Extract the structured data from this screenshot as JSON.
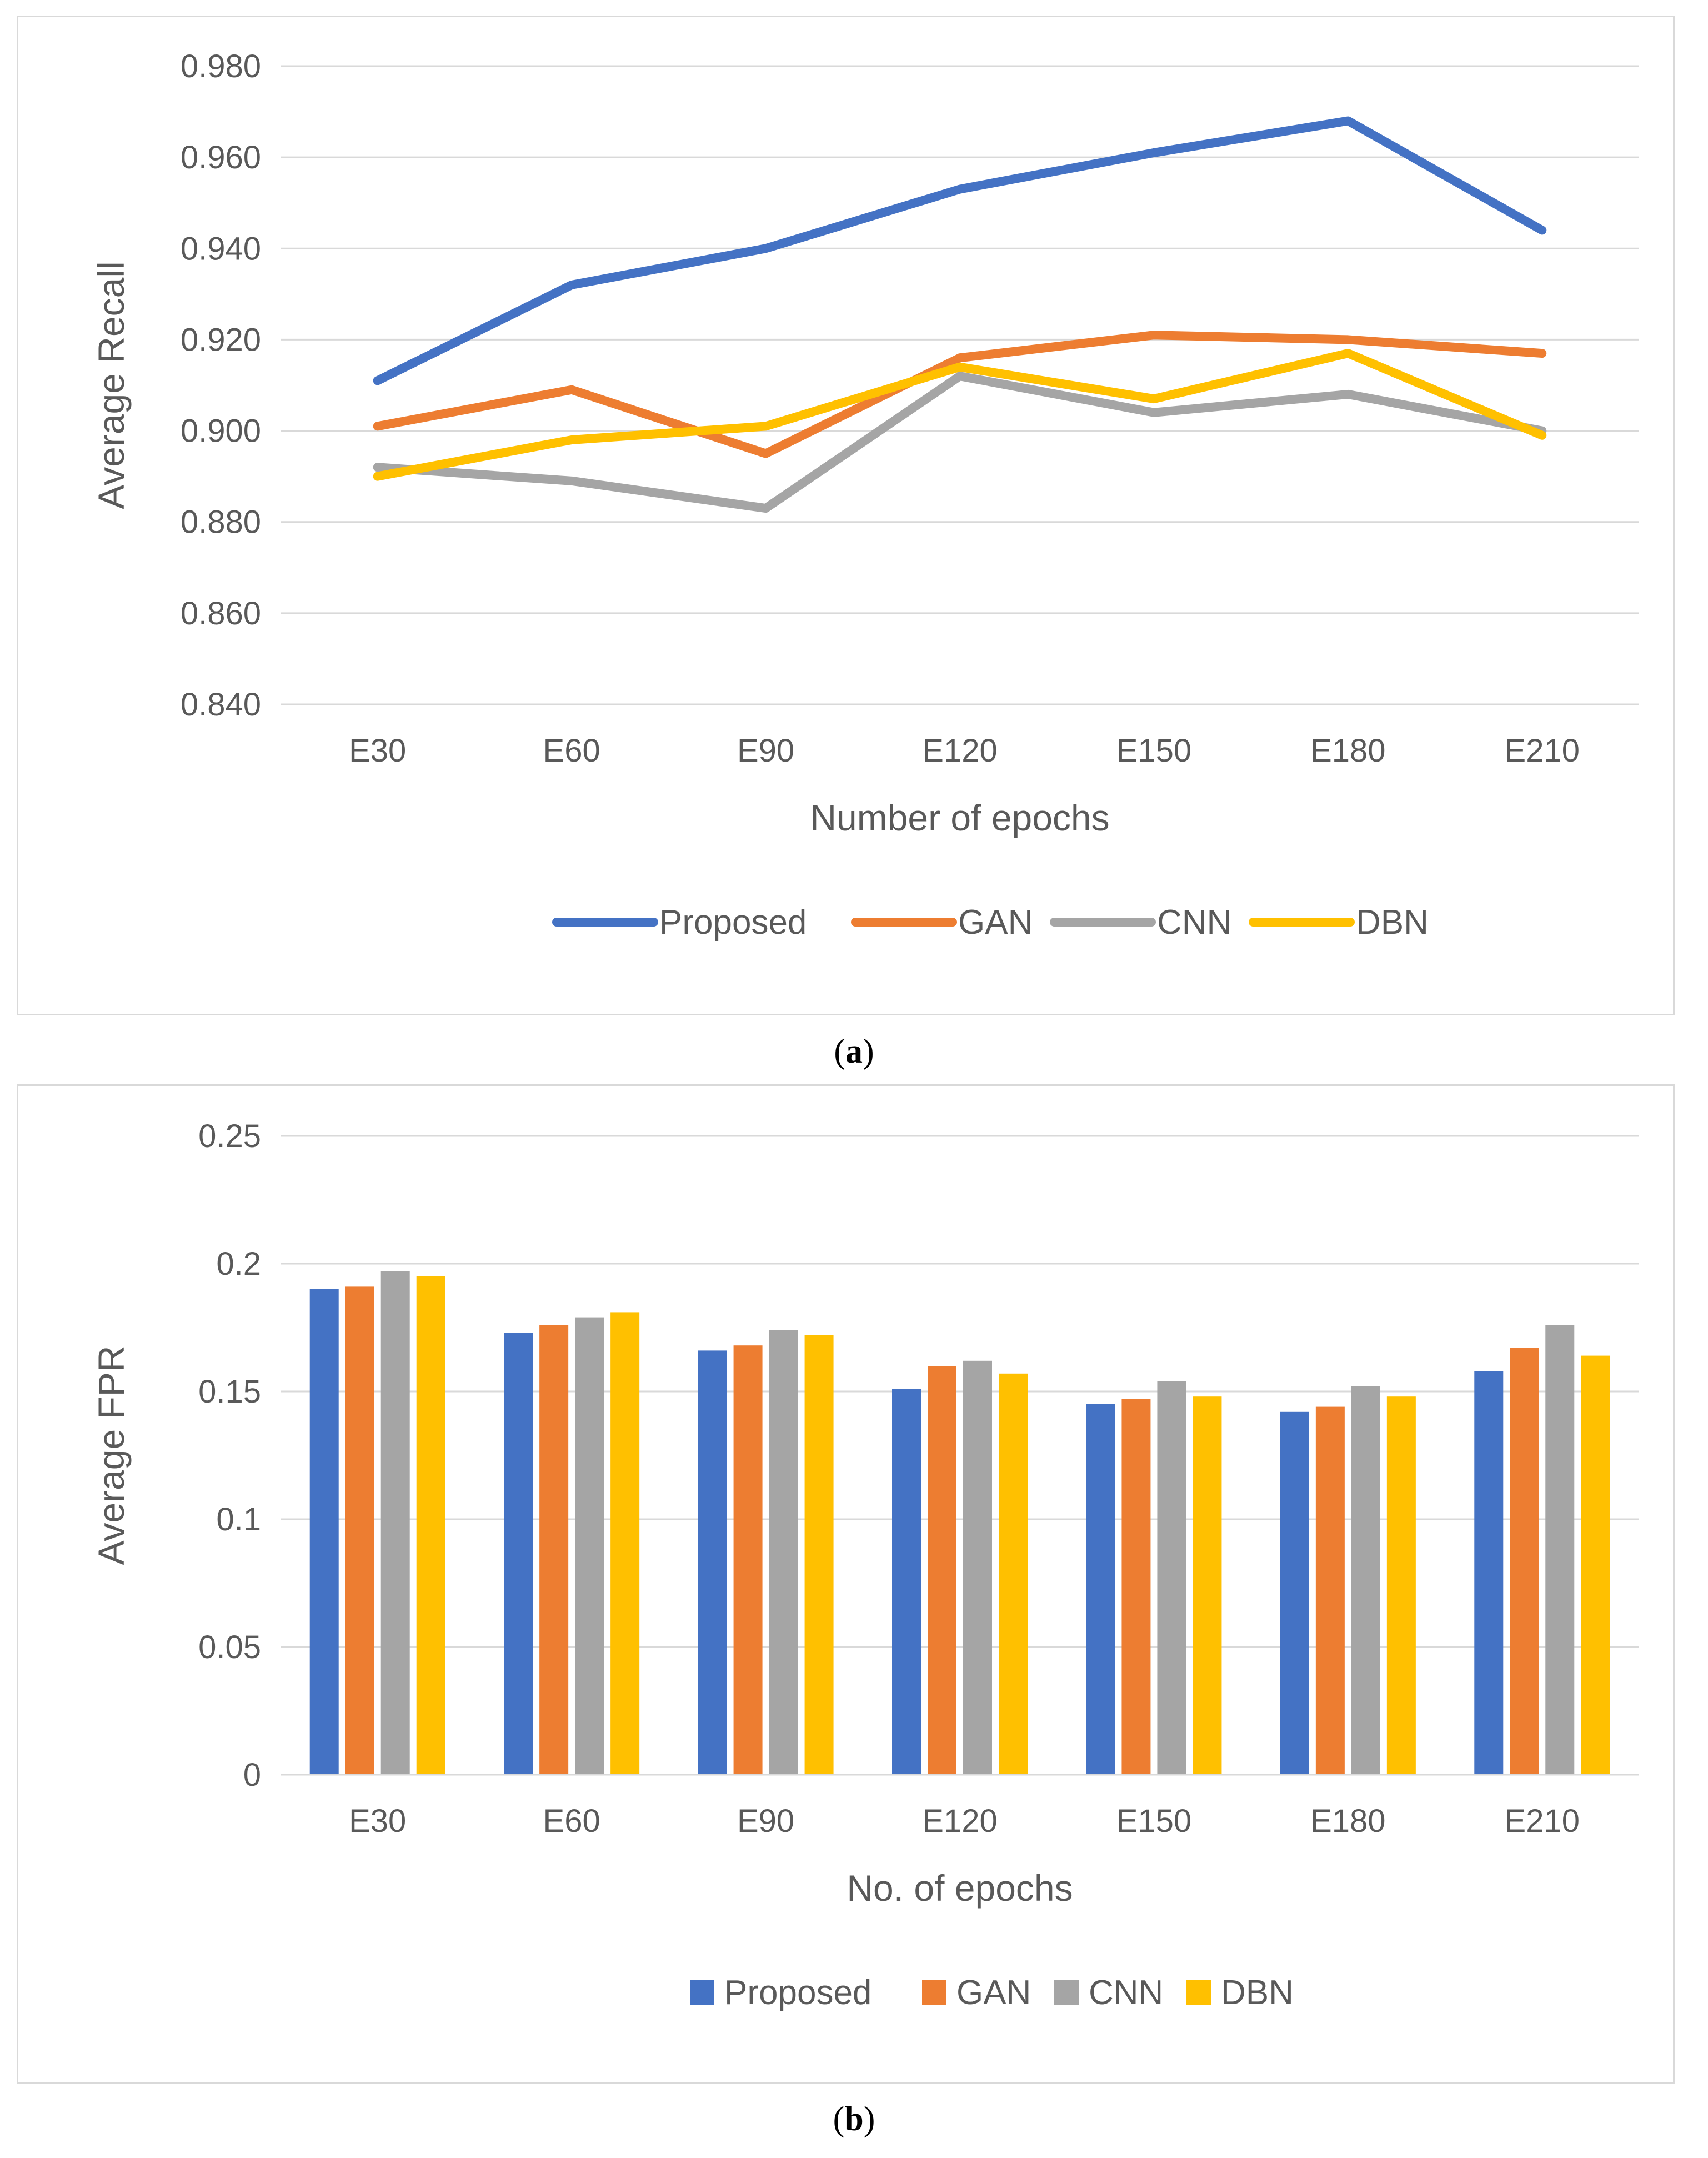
{
  "captions": {
    "a": "a",
    "b": "b"
  },
  "chart_data": [
    {
      "type": "line",
      "categories": [
        "E30",
        "E60",
        "E90",
        "E120",
        "E150",
        "E180",
        "E210"
      ],
      "xlabel": "Number of epochs",
      "ylabel": "Average Recall",
      "ylim": [
        0.84,
        0.98
      ],
      "yticks": [
        "0.840",
        "0.860",
        "0.880",
        "0.900",
        "0.920",
        "0.940",
        "0.960",
        "0.980"
      ],
      "grid": true,
      "legend": "bottom",
      "series": [
        {
          "name": "Proposed",
          "color": "#4472c4",
          "values": [
            0.911,
            0.932,
            0.94,
            0.953,
            0.961,
            0.968,
            0.944
          ]
        },
        {
          "name": "GAN",
          "color": "#ed7d31",
          "values": [
            0.901,
            0.909,
            0.895,
            0.916,
            0.921,
            0.92,
            0.917
          ]
        },
        {
          "name": "CNN",
          "color": "#a5a5a5",
          "values": [
            0.892,
            0.889,
            0.883,
            0.912,
            0.904,
            0.908,
            0.9
          ]
        },
        {
          "name": "DBN",
          "color": "#ffc000",
          "values": [
            0.89,
            0.898,
            0.901,
            0.914,
            0.907,
            0.917,
            0.899
          ]
        }
      ]
    },
    {
      "type": "bar",
      "categories": [
        "E30",
        "E60",
        "E90",
        "E120",
        "E150",
        "E180",
        "E210"
      ],
      "xlabel": "No. of epochs",
      "ylabel": "Average FPR",
      "ylim": [
        0,
        0.25
      ],
      "yticks": [
        "0",
        "0.05",
        "0.1",
        "0.15",
        "0.2",
        "0.25"
      ],
      "grid": true,
      "legend": "bottom",
      "series": [
        {
          "name": "Proposed",
          "color": "#4472c4",
          "values": [
            0.19,
            0.173,
            0.166,
            0.151,
            0.145,
            0.142,
            0.158
          ]
        },
        {
          "name": "GAN",
          "color": "#ed7d31",
          "values": [
            0.191,
            0.176,
            0.168,
            0.16,
            0.147,
            0.144,
            0.167
          ]
        },
        {
          "name": "CNN",
          "color": "#a5a5a5",
          "values": [
            0.197,
            0.179,
            0.174,
            0.162,
            0.154,
            0.152,
            0.176
          ]
        },
        {
          "name": "DBN",
          "color": "#ffc000",
          "values": [
            0.195,
            0.181,
            0.172,
            0.157,
            0.148,
            0.148,
            0.164
          ]
        }
      ]
    }
  ]
}
